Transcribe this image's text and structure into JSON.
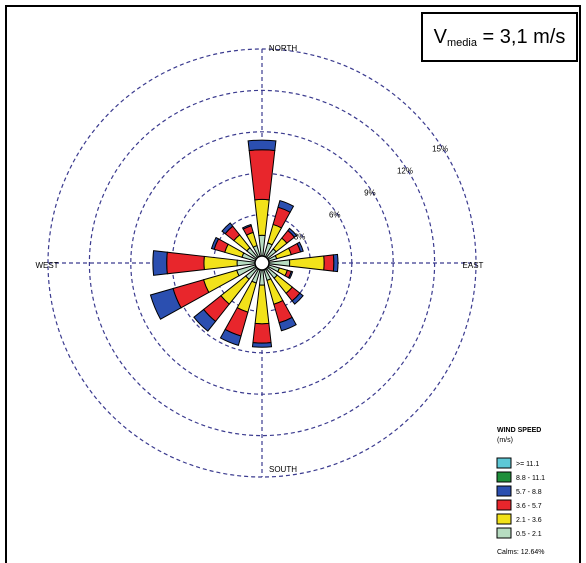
{
  "chart_data": {
    "type": "wind-rose",
    "annotation": {
      "main": "V",
      "subscript": "media",
      "value": "= 3,1 m/s"
    },
    "directions": [
      "N",
      "NNE",
      "NE",
      "ENE",
      "E",
      "ESE",
      "SE",
      "SSE",
      "S",
      "SSW",
      "SW",
      "WSW",
      "W",
      "WNW",
      "NW",
      "NNW"
    ],
    "compass_labels": {
      "north": "NORTH",
      "south": "SOUTH",
      "east": "EAST",
      "west": "WEST"
    },
    "rings": [
      3,
      6,
      9,
      12,
      15
    ],
    "ring_labels": [
      "3%",
      "6%",
      "9%",
      "12%",
      "15%"
    ],
    "legend": {
      "title": "WIND SPEED",
      "units": "(m/s)",
      "bins": [
        {
          "label": ">= 11.1",
          "color": "#5ec8d6"
        },
        {
          "label": "8.8 - 11.1",
          "color": "#1f8f3a"
        },
        {
          "label": "5.7 - 8.8",
          "color": "#2b4fb0"
        },
        {
          "label": "3.6 - 5.7",
          "color": "#e8262c"
        },
        {
          "label": "2.1 - 3.6",
          "color": "#f2e21a"
        },
        {
          "label": "0.5 - 2.1",
          "color": "#b7dcc1"
        }
      ],
      "calms": "Calms: 12.64%"
    },
    "bin_order_from_center": [
      "0.5 - 2.1",
      "2.1 - 3.6",
      "3.6 - 5.7",
      "5.7 - 8.8",
      "8.8 - 11.1",
      ">= 11.1"
    ],
    "frequencies": [
      {
        "dir": "N",
        "values": [
          1.5,
          2.6,
          3.6,
          0.7,
          0,
          0
        ]
      },
      {
        "dir": "NNE",
        "values": [
          1.0,
          1.4,
          1.3,
          0.5,
          0,
          0
        ]
      },
      {
        "dir": "NE",
        "values": [
          0.8,
          1.0,
          0.7,
          0.2,
          0,
          0
        ]
      },
      {
        "dir": "ENE",
        "values": [
          0.6,
          1.1,
          0.7,
          0.2,
          0,
          0
        ]
      },
      {
        "dir": "E",
        "values": [
          1.5,
          2.5,
          0.7,
          0.3,
          0,
          0
        ]
      },
      {
        "dir": "ESE",
        "values": [
          0.8,
          0.6,
          0.3,
          0.1,
          0,
          0
        ]
      },
      {
        "dir": "SE",
        "values": [
          0.9,
          1.4,
          0.7,
          0.3,
          0,
          0
        ]
      },
      {
        "dir": "SSE",
        "values": [
          0.8,
          1.8,
          1.4,
          0.6,
          0,
          0
        ]
      },
      {
        "dir": "S",
        "values": [
          1.1,
          2.8,
          1.4,
          0.3,
          0,
          0
        ]
      },
      {
        "dir": "SSW",
        "values": [
          1.0,
          2.2,
          1.8,
          0.7,
          0,
          0
        ]
      },
      {
        "dir": "SW",
        "values": [
          1.0,
          2.3,
          1.6,
          0.9,
          0,
          0
        ]
      },
      {
        "dir": "WSW",
        "values": [
          1.4,
          2.5,
          2.3,
          1.7,
          0,
          0
        ]
      },
      {
        "dir": "W",
        "values": [
          1.3,
          2.4,
          2.7,
          1.0,
          0,
          0
        ]
      },
      {
        "dir": "WNW",
        "values": [
          1.0,
          1.3,
          0.8,
          0.2,
          0,
          0
        ]
      },
      {
        "dir": "NW",
        "values": [
          0.9,
          1.2,
          0.8,
          0.3,
          0,
          0
        ]
      },
      {
        "dir": "NNW",
        "values": [
          0.8,
          1.0,
          0.5,
          0.1,
          0,
          0
        ]
      }
    ]
  }
}
